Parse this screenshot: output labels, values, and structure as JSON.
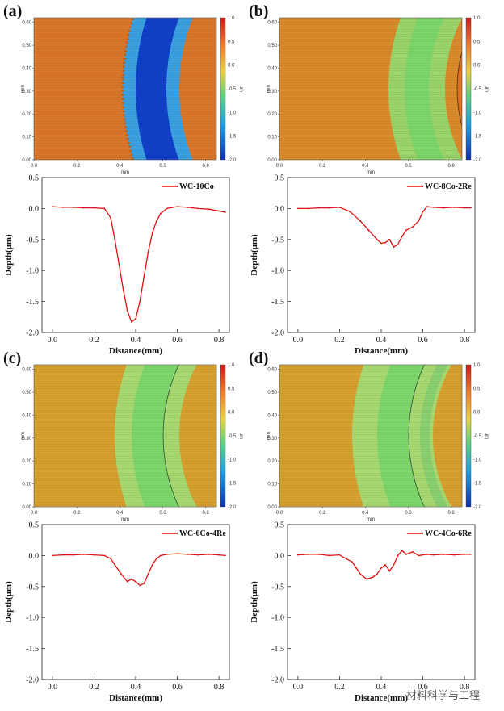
{
  "watermark": "材料科学与工程",
  "colorbar_ticks": [
    "1.0",
    "0.5",
    "0.0",
    "-0.5",
    "-1.0",
    "-1.5",
    "-2.0"
  ],
  "colorbar_unit": "um",
  "colors": {
    "line": "#e01010",
    "map_base": "#d97a2a",
    "map_track_deep": "#1040c8",
    "map_track_shallow": "#7cd66a"
  },
  "chart_data": [
    {
      "panel": "(a)",
      "type": "line",
      "map": {
        "xlabel": "mm",
        "ylabel": "mm",
        "xticks": [
          "0.0",
          "0.2",
          "0.4",
          "0.6",
          "0.8"
        ],
        "yticks": [
          "0.60",
          "0.50",
          "0.40",
          "0.30",
          "0.20",
          "0.10",
          "0.00"
        ],
        "xlim": [
          0,
          0.85
        ],
        "ylim": [
          0,
          0.62
        ]
      },
      "xlabel": "Distance(mm)",
      "ylabel": "Depth(μm)",
      "xlim": [
        -0.05,
        0.85
      ],
      "ylim": [
        -2.0,
        0.5
      ],
      "xticks": [
        "0.0",
        "0.2",
        "0.4",
        "0.6",
        "0.8"
      ],
      "yticks": [
        "0.5",
        "0.0",
        "-0.5",
        "-1.0",
        "-1.5",
        "-2.0"
      ],
      "legend": "WC-10Co",
      "series": [
        {
          "name": "WC-10Co",
          "x": [
            0.0,
            0.05,
            0.1,
            0.15,
            0.2,
            0.25,
            0.28,
            0.3,
            0.32,
            0.34,
            0.36,
            0.38,
            0.4,
            0.42,
            0.44,
            0.46,
            0.48,
            0.5,
            0.52,
            0.55,
            0.58,
            0.6,
            0.65,
            0.7,
            0.75,
            0.8,
            0.83
          ],
          "y": [
            0.03,
            0.02,
            0.02,
            0.01,
            0.01,
            0.0,
            -0.15,
            -0.5,
            -0.9,
            -1.3,
            -1.65,
            -1.83,
            -1.78,
            -1.5,
            -1.1,
            -0.7,
            -0.4,
            -0.2,
            -0.08,
            0.0,
            0.02,
            0.03,
            0.02,
            0.0,
            -0.01,
            -0.04,
            -0.06
          ]
        }
      ]
    },
    {
      "panel": "(b)",
      "type": "line",
      "map": {
        "xlabel": "mm",
        "ylabel": "mm",
        "xticks": [
          "0.0",
          "0.2",
          "0.4",
          "0.6",
          "0.8"
        ],
        "yticks": [
          "0.60",
          "0.50",
          "0.40",
          "0.30",
          "0.20",
          "0.10",
          "0.00"
        ],
        "xlim": [
          0,
          0.85
        ],
        "ylim": [
          0,
          0.62
        ]
      },
      "xlabel": "Distance(mm)",
      "ylabel": "Depth(μm)",
      "xlim": [
        -0.05,
        0.85
      ],
      "ylim": [
        -2.0,
        0.5
      ],
      "xticks": [
        "0.0",
        "0.2",
        "0.4",
        "0.6",
        "0.8"
      ],
      "yticks": [
        "0.5",
        "0.0",
        "-0.5",
        "-1.0",
        "-1.5",
        "-2.0"
      ],
      "legend": "WC-8Co-2Re",
      "series": [
        {
          "name": "WC-8Co-2Re",
          "x": [
            0.0,
            0.05,
            0.1,
            0.15,
            0.2,
            0.25,
            0.3,
            0.34,
            0.38,
            0.4,
            0.42,
            0.44,
            0.46,
            0.48,
            0.5,
            0.52,
            0.55,
            0.58,
            0.6,
            0.62,
            0.65,
            0.7,
            0.75,
            0.8,
            0.83
          ],
          "y": [
            0.0,
            0.0,
            0.01,
            0.01,
            0.02,
            -0.05,
            -0.2,
            -0.35,
            -0.5,
            -0.56,
            -0.55,
            -0.5,
            -0.62,
            -0.58,
            -0.45,
            -0.35,
            -0.3,
            -0.2,
            -0.05,
            0.03,
            0.02,
            0.01,
            0.02,
            0.01,
            0.01
          ]
        }
      ]
    },
    {
      "panel": "(c)",
      "type": "line",
      "map": {
        "xlabel": "mm",
        "ylabel": "mm",
        "xticks": [
          "0.0",
          "0.2",
          "0.4",
          "0.6",
          "0.8"
        ],
        "yticks": [
          "0.60",
          "0.50",
          "0.40",
          "0.30",
          "0.20",
          "0.10",
          "0.00"
        ],
        "xlim": [
          0,
          0.85
        ],
        "ylim": [
          0,
          0.62
        ]
      },
      "xlabel": "Distance(mm)",
      "ylabel": "Depth(μm)",
      "xlim": [
        -0.05,
        0.85
      ],
      "ylim": [
        -2.0,
        0.5
      ],
      "xticks": [
        "0.0",
        "0.2",
        "0.4",
        "0.6",
        "0.8"
      ],
      "yticks": [
        "0.5",
        "0.0",
        "-0.5",
        "-1.0",
        "-1.5",
        "-2.0"
      ],
      "legend": "WC-6Co-4Re",
      "series": [
        {
          "name": "WC-6Co-4Re",
          "x": [
            0.0,
            0.05,
            0.1,
            0.15,
            0.2,
            0.25,
            0.28,
            0.3,
            0.33,
            0.36,
            0.38,
            0.4,
            0.42,
            0.44,
            0.46,
            0.48,
            0.5,
            0.52,
            0.55,
            0.6,
            0.65,
            0.7,
            0.75,
            0.8,
            0.83
          ],
          "y": [
            0.0,
            0.01,
            0.01,
            0.02,
            0.01,
            0.0,
            -0.05,
            -0.15,
            -0.3,
            -0.42,
            -0.38,
            -0.42,
            -0.48,
            -0.45,
            -0.3,
            -0.15,
            -0.05,
            0.0,
            0.02,
            0.03,
            0.02,
            0.01,
            0.02,
            0.01,
            0.0
          ]
        }
      ]
    },
    {
      "panel": "(d)",
      "type": "line",
      "map": {
        "xlabel": "mm",
        "ylabel": "mm",
        "xticks": [
          "0.0",
          "0.2",
          "0.4",
          "0.6",
          "0.8"
        ],
        "yticks": [
          "0.60",
          "0.50",
          "0.40",
          "0.30",
          "0.20",
          "0.10",
          "0.00"
        ],
        "xlim": [
          0,
          0.85
        ],
        "ylim": [
          0,
          0.62
        ]
      },
      "xlabel": "Distance(mm)",
      "ylabel": "Depth(μm)",
      "xlim": [
        -0.05,
        0.85
      ],
      "ylim": [
        -2.0,
        0.5
      ],
      "xticks": [
        "0.0",
        "0.2",
        "0.4",
        "0.6",
        "0.8"
      ],
      "yticks": [
        "0.5",
        "0.0",
        "-0.5",
        "-1.0",
        "-1.5",
        "-2.0"
      ],
      "legend": "WC-4Co-6Re",
      "series": [
        {
          "name": "WC-4Co-6Re",
          "x": [
            0.0,
            0.05,
            0.1,
            0.15,
            0.2,
            0.23,
            0.26,
            0.28,
            0.3,
            0.33,
            0.36,
            0.38,
            0.4,
            0.42,
            0.44,
            0.46,
            0.48,
            0.5,
            0.52,
            0.55,
            0.58,
            0.62,
            0.65,
            0.7,
            0.75,
            0.8,
            0.83
          ],
          "y": [
            0.01,
            0.02,
            0.02,
            0.0,
            0.01,
            -0.05,
            -0.1,
            -0.2,
            -0.3,
            -0.38,
            -0.35,
            -0.3,
            -0.2,
            -0.15,
            -0.25,
            -0.15,
            0.0,
            0.08,
            0.02,
            0.06,
            0.0,
            0.02,
            0.01,
            0.02,
            0.01,
            0.02,
            0.02
          ]
        }
      ]
    }
  ]
}
